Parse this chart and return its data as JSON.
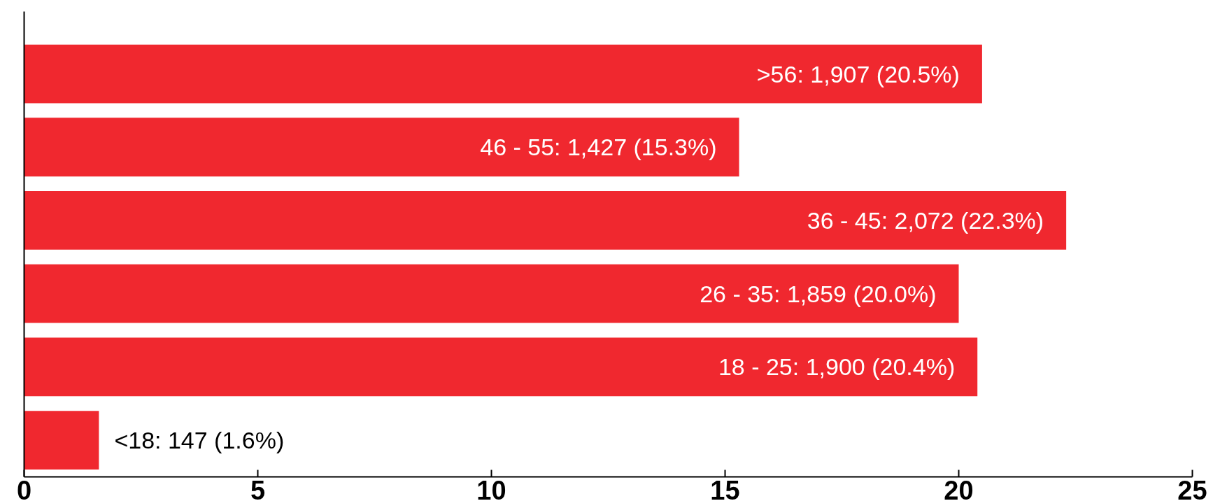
{
  "chart_data": {
    "type": "bar",
    "orientation": "horizontal",
    "categories": [
      null,
      null,
      null,
      null,
      null,
      null
    ],
    "values": [
      20.5,
      15.3,
      22.3,
      20.0,
      20.4,
      1.6
    ],
    "value_labels": [
      ">56: 1,907 (20.5%)",
      "46 - 55: 1,427 (15.3%)",
      "36 - 45: 2,072 (22.3%)",
      "26 - 35: 1,859 (20.0%)",
      "18 - 25: 1,900 (20.4%)",
      "<18: 147 (1.6%)"
    ],
    "color": "#f0282f",
    "xlim": [
      0,
      25
    ],
    "xticks": [
      0,
      5,
      10,
      15,
      20,
      25
    ],
    "grid": false
  }
}
